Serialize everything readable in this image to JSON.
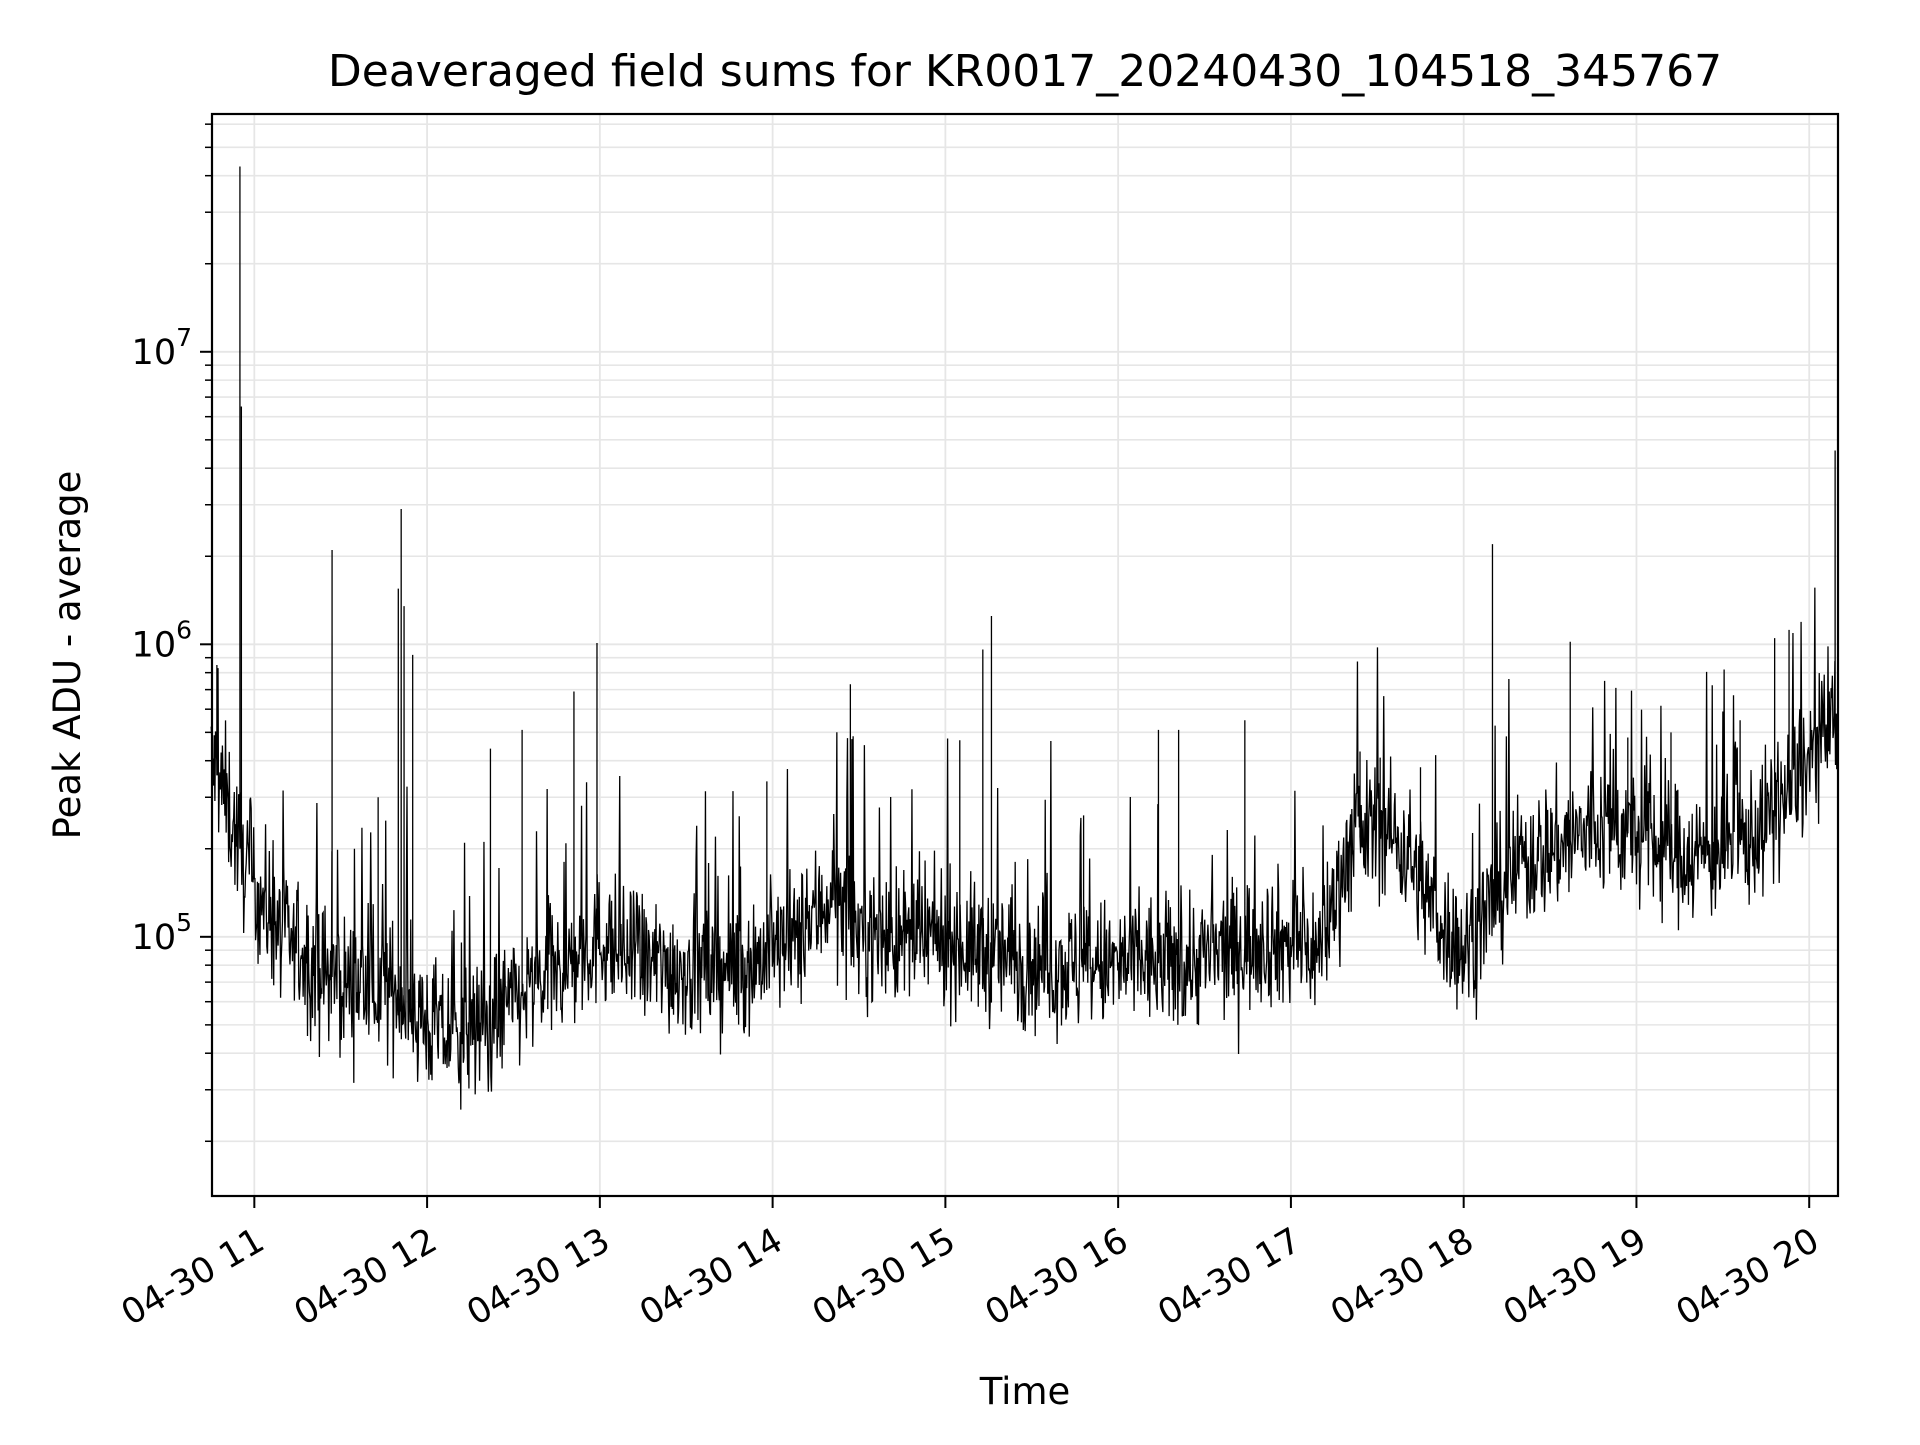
{
  "chart_data": {
    "type": "line",
    "title": "Deaveraged field sums for KR0017_20240430_104518_345767",
    "xlabel": "Time",
    "ylabel": "Peak ADU - average",
    "yscale": "log",
    "ylim": [
      13000,
      65000000
    ],
    "xlim": [
      "2024-04-30 10:45:18",
      "2024-04-30 20:10:00"
    ],
    "grid": true,
    "line_color": "#000000",
    "grid_color": "#e6e6e6",
    "x_ticks": [
      {
        "value": "2024-04-30 11:00",
        "label": "04-30 11"
      },
      {
        "value": "2024-04-30 12:00",
        "label": "04-30 12"
      },
      {
        "value": "2024-04-30 13:00",
        "label": "04-30 13"
      },
      {
        "value": "2024-04-30 14:00",
        "label": "04-30 14"
      },
      {
        "value": "2024-04-30 15:00",
        "label": "04-30 15"
      },
      {
        "value": "2024-04-30 16:00",
        "label": "04-30 16"
      },
      {
        "value": "2024-04-30 17:00",
        "label": "04-30 17"
      },
      {
        "value": "2024-04-30 18:00",
        "label": "04-30 18"
      },
      {
        "value": "2024-04-30 19:00",
        "label": "04-30 19"
      },
      {
        "value": "2024-04-30 20:00",
        "label": "04-30 20"
      }
    ],
    "y_ticks": [
      {
        "value": 100000,
        "base": "10",
        "exp": "5"
      },
      {
        "value": 1000000,
        "base": "10",
        "exp": "6"
      },
      {
        "value": 10000000,
        "base": "10",
        "exp": "7"
      }
    ],
    "series": [
      {
        "times": [
          "10:45",
          "10:50",
          "10:55",
          "11:00",
          "11:10",
          "11:20",
          "11:30",
          "11:40",
          "11:50",
          "12:00",
          "12:10",
          "12:20",
          "12:30",
          "12:40",
          "12:50",
          "13:00",
          "13:10",
          "13:20",
          "13:30",
          "13:40",
          "13:50",
          "14:00",
          "14:10",
          "14:20",
          "14:30",
          "14:40",
          "14:50",
          "15:00",
          "15:10",
          "15:20",
          "15:30",
          "15:40",
          "15:50",
          "16:00",
          "16:10",
          "16:20",
          "16:30",
          "16:40",
          "16:50",
          "17:00",
          "17:10",
          "17:20",
          "17:30",
          "17:40",
          "17:50",
          "18:00",
          "18:10",
          "18:20",
          "18:30",
          "18:40",
          "18:50",
          "19:00",
          "19:10",
          "19:20",
          "19:30",
          "19:40",
          "19:50",
          "20:00",
          "20:10"
        ],
        "values": [
          400000,
          300000,
          200000,
          150000,
          100000,
          80000,
          70000,
          68000,
          65000,
          50000,
          45000,
          50000,
          60000,
          70000,
          80000,
          100000,
          85000,
          80000,
          78000,
          75000,
          80000,
          90000,
          100000,
          140000,
          105000,
          100000,
          95000,
          100000,
          90000,
          85000,
          82000,
          80000,
          78000,
          80000,
          82000,
          80000,
          85000,
          90000,
          100000,
          95000,
          90000,
          200000,
          250000,
          200000,
          120000,
          90000,
          130000,
          180000,
          200000,
          220000,
          240000,
          220000,
          200000,
          190000,
          200000,
          220000,
          280000,
          400000,
          550000
        ],
        "spikes": [
          {
            "t": "10:47",
            "v": 850000
          },
          {
            "t": "10:55",
            "v": 43000000
          },
          {
            "t": "10:55.5",
            "v": 6500000
          },
          {
            "t": "11:27",
            "v": 2100000
          },
          {
            "t": "11:43",
            "v": 300000
          },
          {
            "t": "11:50",
            "v": 1550000
          },
          {
            "t": "11:51",
            "v": 2900000
          },
          {
            "t": "11:52",
            "v": 1350000
          },
          {
            "t": "11:55",
            "v": 920000
          },
          {
            "t": "12:22",
            "v": 440000
          },
          {
            "t": "12:33",
            "v": 510000
          },
          {
            "t": "12:51",
            "v": 690000
          },
          {
            "t": "12:59",
            "v": 1010000
          },
          {
            "t": "13:58",
            "v": 340000
          },
          {
            "t": "14:27",
            "v": 730000
          },
          {
            "t": "15:05",
            "v": 470000
          },
          {
            "t": "15:13",
            "v": 960000
          },
          {
            "t": "15:16",
            "v": 1250000
          },
          {
            "t": "15:48",
            "v": 260000
          },
          {
            "t": "16:14",
            "v": 510000
          },
          {
            "t": "16:21",
            "v": 510000
          },
          {
            "t": "16:44",
            "v": 550000
          },
          {
            "t": "17:24",
            "v": 430000
          },
          {
            "t": "17:31",
            "v": 410000
          },
          {
            "t": "17:45",
            "v": 380000
          },
          {
            "t": "18:10",
            "v": 2200000
          },
          {
            "t": "18:37",
            "v": 1020000
          },
          {
            "t": "18:57",
            "v": 480000
          },
          {
            "t": "19:12",
            "v": 500000
          },
          {
            "t": "19:36",
            "v": 550000
          },
          {
            "t": "19:48",
            "v": 1050000
          },
          {
            "t": "19:53",
            "v": 1120000
          },
          {
            "t": "20:09",
            "v": 4600000
          },
          {
            "t": "20:10",
            "v": 1100000
          }
        ]
      }
    ]
  }
}
